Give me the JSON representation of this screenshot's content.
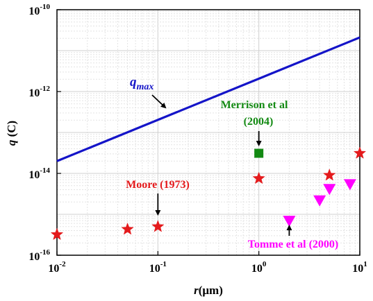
{
  "chart_data": {
    "type": "scatter",
    "xscale": "log",
    "yscale": "log",
    "xlim": [
      0.01,
      10
    ],
    "ylim": [
      1e-16,
      1e-10
    ],
    "grid": true,
    "xlabel_main": "r",
    "xlabel_unit": "(μm)",
    "ylabel_main": "q",
    "ylabel_unit": " (C)",
    "x_ticks": [
      {
        "value": 0.01,
        "base": "10",
        "exp": "-2"
      },
      {
        "value": 0.1,
        "base": "10",
        "exp": "-1"
      },
      {
        "value": 1,
        "base": "10",
        "exp": "0"
      },
      {
        "value": 10,
        "base": "10",
        "exp": "1"
      }
    ],
    "y_ticks": [
      {
        "value": 1e-16,
        "base": "10",
        "exp": "-16"
      },
      {
        "value": 1e-14,
        "base": "10",
        "exp": "-14"
      },
      {
        "value": 1e-12,
        "base": "10",
        "exp": "-12"
      },
      {
        "value": 1e-10,
        "base": "10",
        "exp": "-10"
      }
    ],
    "series": [
      {
        "name": "q_max",
        "label_main": "q",
        "label_sub": "max",
        "kind": "line",
        "color": "#1414c8",
        "x": [
          0.01,
          10
        ],
        "y": [
          2e-14,
          2.1e-11
        ]
      },
      {
        "name": "Moore (1973)",
        "label": "Moore (1973)",
        "kind": "star",
        "color": "#e41a1c",
        "x": [
          0.01,
          0.05,
          0.1,
          1,
          5,
          10
        ],
        "y": [
          3.2e-16,
          4.3e-16,
          5e-16,
          7.5e-15,
          9e-15,
          3.1e-14
        ]
      },
      {
        "name": "Merrison et al (2004)",
        "label_line1": "Merrison et al",
        "label_line2": "(2004)",
        "kind": "square",
        "color": "#138a13",
        "x": [
          1
        ],
        "y": [
          3.1e-14
        ]
      },
      {
        "name": "Tomme et al (2000)",
        "label": "Tomme et al (2000)",
        "kind": "triangle-down",
        "color": "#ff00ff",
        "x": [
          2,
          4,
          5,
          8
        ],
        "y": [
          7e-16,
          2.2e-15,
          4.2e-15,
          5.5e-15
        ]
      }
    ]
  }
}
